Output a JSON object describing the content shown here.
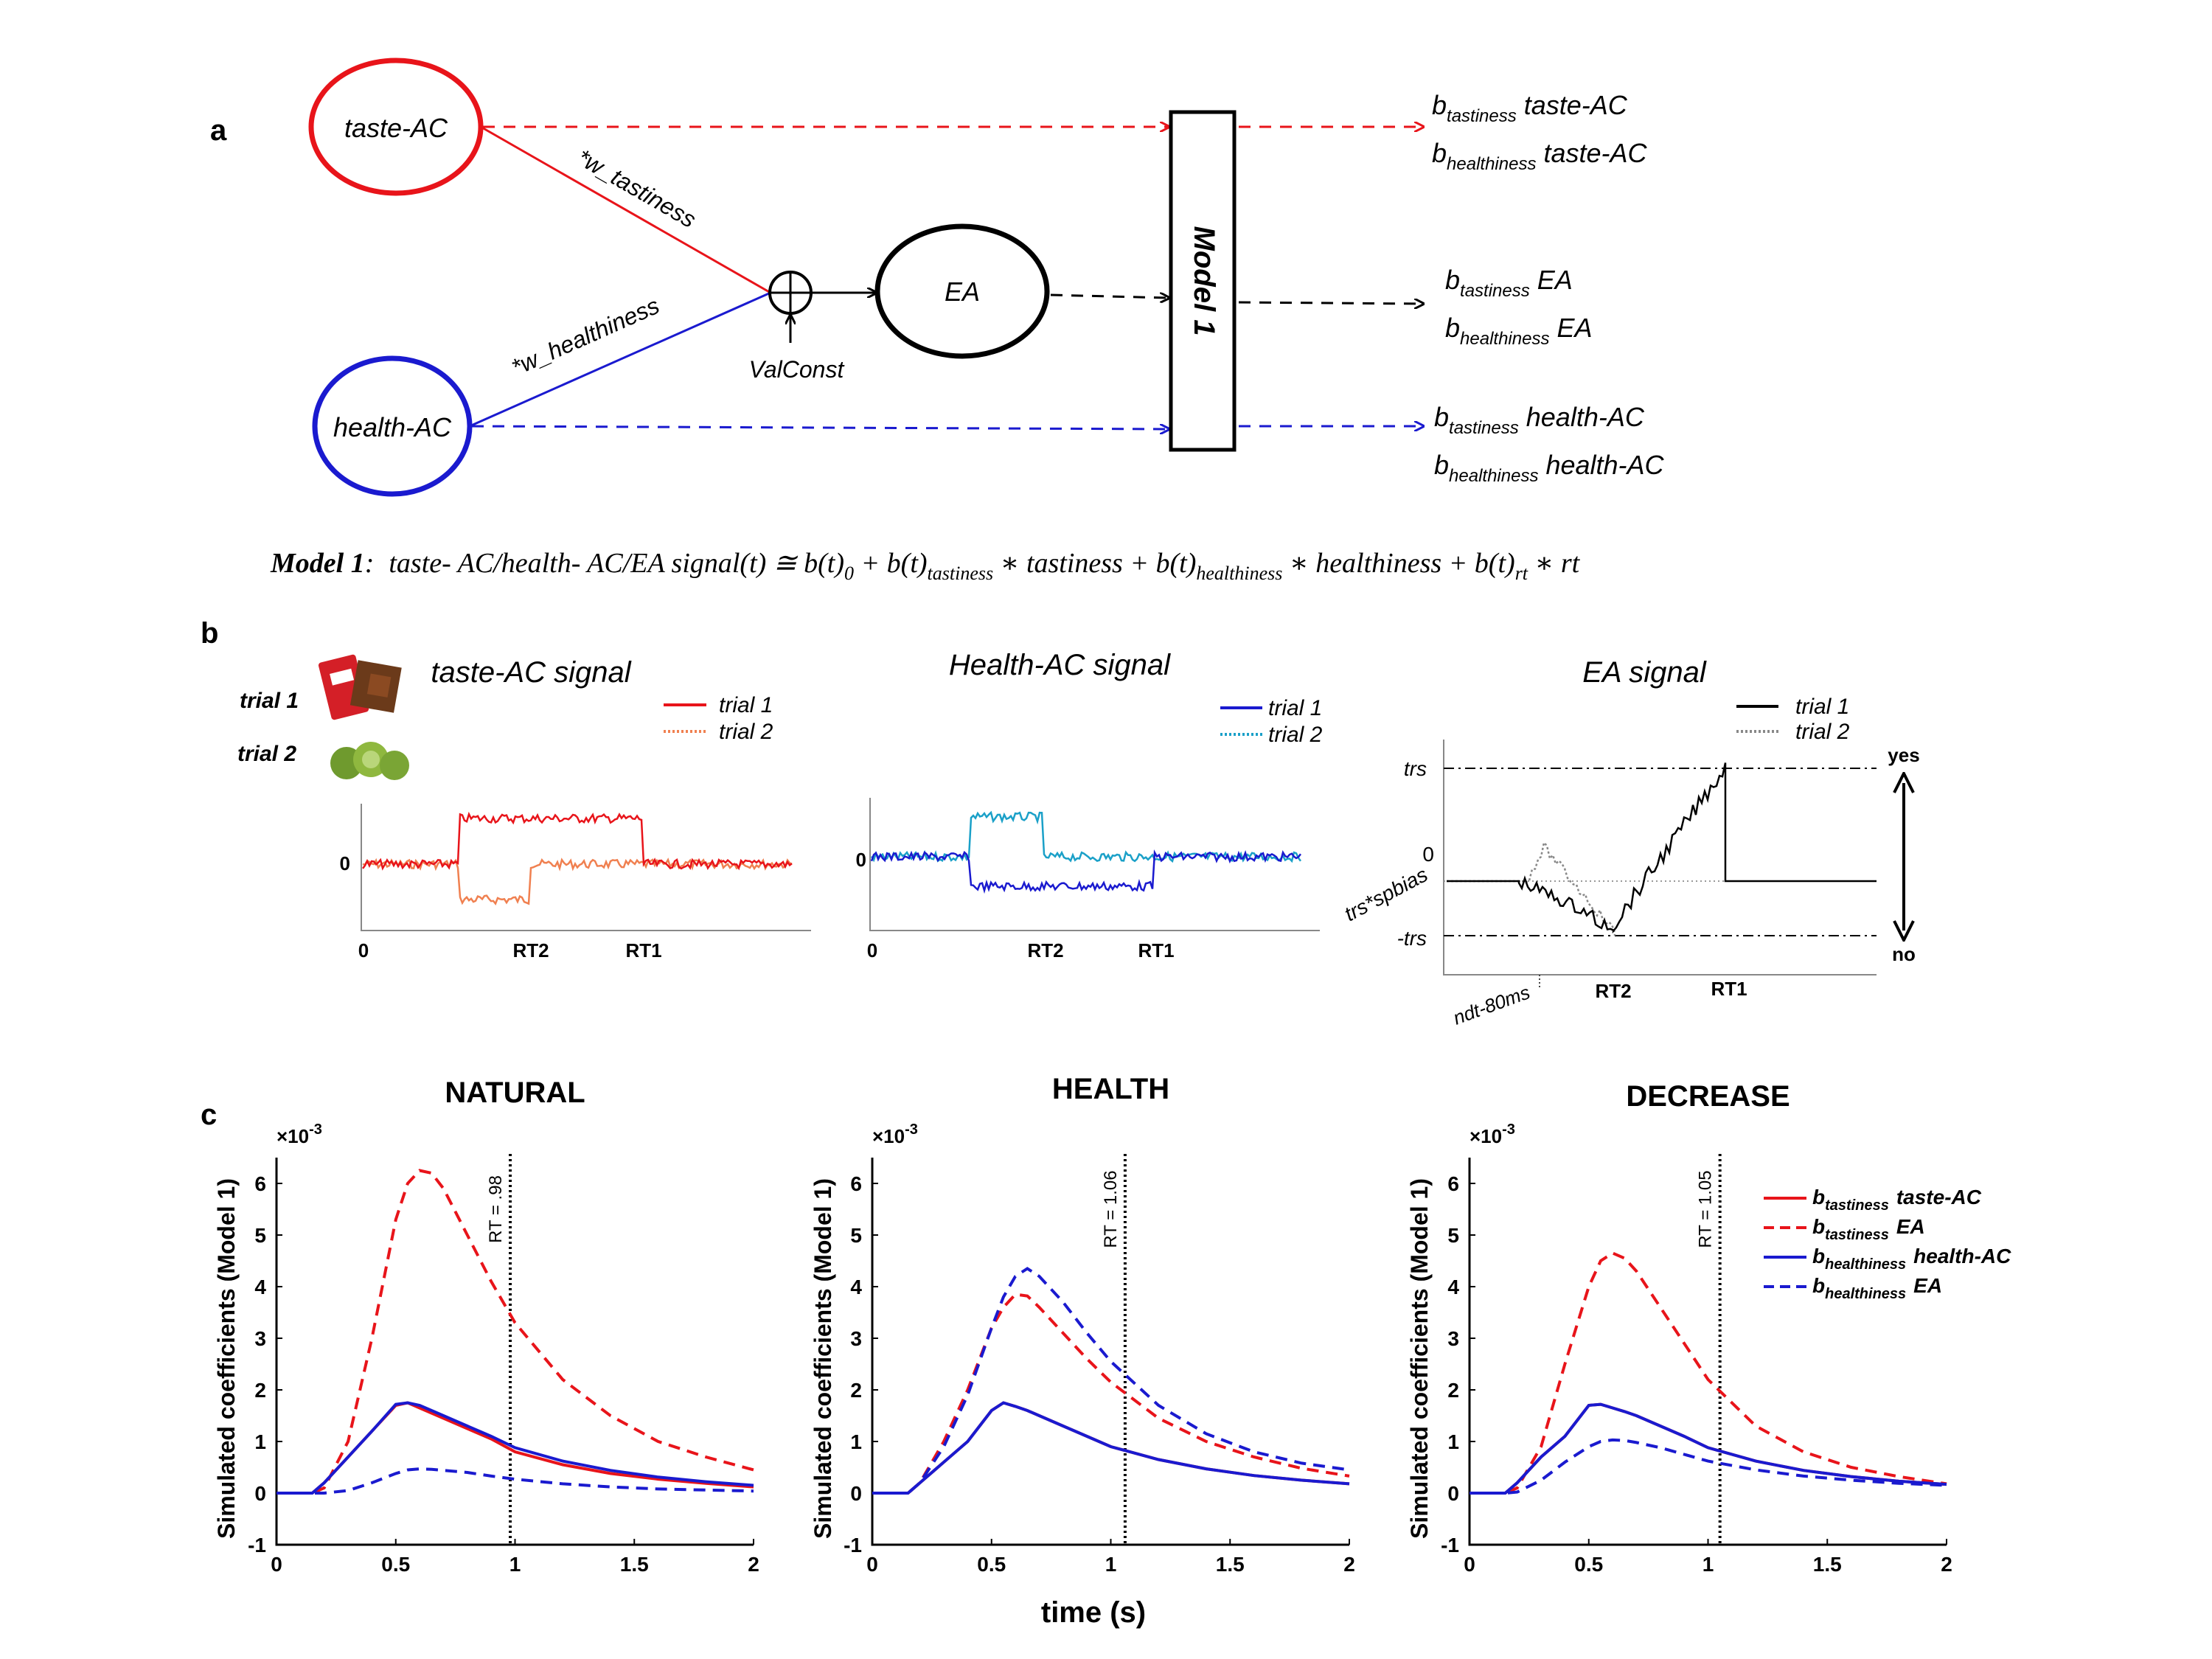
{
  "panel_a": {
    "label": "a",
    "nodes": {
      "taste": "taste-AC",
      "health": "health-AC",
      "ea": "EA"
    },
    "weights": {
      "taste": "*w_tastiness",
      "health": "*w_healthiness",
      "valconst": "ValConst"
    },
    "model_box": "Model 1",
    "outputs": [
      {
        "b": "b",
        "sub": "tastiness",
        "tail": " taste-AC"
      },
      {
        "b": "b",
        "sub": "healthiness",
        "tail": " taste-AC"
      },
      {
        "b": "b",
        "sub": "tastiness",
        "tail": " EA"
      },
      {
        "b": "b",
        "sub": "healthiness",
        "tail": " EA"
      },
      {
        "b": "b",
        "sub": "tastiness",
        "tail": " health-AC"
      },
      {
        "b": "b",
        "sub": "healthiness",
        "tail": " health-AC"
      }
    ],
    "equation": {
      "name": "Model 1",
      "colon": ":",
      "lhs": "taste- AC/health- AC/EA signal(t) ≅ b(t)",
      "sub0": "0",
      "p1": " + b(t)",
      "sub1": "tastiness",
      "p2": " ∗ tastiness + b(t)",
      "sub2": "healthiness",
      "p3": " ∗ healthiness + b(t)",
      "sub3": "rt",
      "p4": " ∗ rt"
    }
  },
  "panel_b": {
    "label": "b",
    "trial1": "trial 1",
    "trial2": "trial 2",
    "taste": {
      "title": "taste-AC signal",
      "legend": [
        "trial 1",
        "trial 2"
      ],
      "ytick": "0",
      "xticks": [
        "0",
        "RT2",
        "RT1"
      ]
    },
    "health": {
      "title": "Health-AC signal",
      "legend": [
        "trial 1",
        "trial 2"
      ],
      "ytick": "0",
      "xticks": [
        "0",
        "RT2",
        "RT1"
      ]
    },
    "ea": {
      "title": "EA signal",
      "legend": [
        "trial 1",
        "trial 2"
      ],
      "yticks": [
        "trs",
        "0",
        "trs*spbias",
        "-trs"
      ],
      "xticks": [
        "ndt-80ms",
        "RT2",
        "RT1"
      ],
      "yes": "yes",
      "no": "no"
    }
  },
  "panel_c": {
    "label": "c",
    "xlabel": "time (s)",
    "ylabel": "Simulated coefficients (Model 1)",
    "exponent_base": "×10",
    "exponent_pow": "-3",
    "legend": [
      {
        "b": "b",
        "sub": "tastiness",
        "tail": "taste-AC",
        "color": "#e8141a",
        "dash": false
      },
      {
        "b": "b",
        "sub": "tastiness",
        "tail": "EA",
        "color": "#e8141a",
        "dash": true
      },
      {
        "b": "b",
        "sub": "healthiness",
        "tail": "health-AC",
        "color": "#1a1acf",
        "dash": false
      },
      {
        "b": "b",
        "sub": "healthiness",
        "tail": "EA",
        "color": "#1a1acf",
        "dash": true
      }
    ]
  },
  "chart_data": [
    {
      "type": "line",
      "title": "NATURAL",
      "xlabel": "time (s)",
      "ylabel": "Simulated coefficients (Model 1)",
      "xlim": [
        0,
        2
      ],
      "ylim": [
        -1,
        6.5
      ],
      "y_scale_note": "×10-3",
      "xticks": [
        "0",
        "0.5",
        "1",
        "1.5",
        "2"
      ],
      "yticks": [
        "-1",
        "0",
        "1",
        "2",
        "3",
        "4",
        "5",
        "6"
      ],
      "vline": {
        "x": 0.98,
        "label": "RT = .98"
      },
      "x": [
        0,
        0.1,
        0.15,
        0.2,
        0.3,
        0.4,
        0.5,
        0.55,
        0.6,
        0.65,
        0.7,
        0.8,
        0.9,
        1.0,
        1.2,
        1.4,
        1.6,
        1.8,
        2.0
      ],
      "series": [
        {
          "name": "b tastiness taste-AC",
          "color": "#e8141a",
          "dash": false,
          "values": [
            0,
            0,
            0,
            0.2,
            0.7,
            1.2,
            1.7,
            1.75,
            1.65,
            1.55,
            1.45,
            1.25,
            1.05,
            0.8,
            0.55,
            0.38,
            0.27,
            0.19,
            0.12
          ]
        },
        {
          "name": "b tastiness EA",
          "color": "#e8141a",
          "dash": true,
          "values": [
            0,
            0,
            0,
            0.1,
            1.0,
            3.0,
            5.3,
            6.0,
            6.25,
            6.2,
            5.9,
            5.0,
            4.1,
            3.3,
            2.2,
            1.5,
            1.0,
            0.7,
            0.45
          ]
        },
        {
          "name": "b healthiness health-AC",
          "color": "#1a1acf",
          "dash": false,
          "values": [
            0,
            0,
            0,
            0.2,
            0.7,
            1.2,
            1.72,
            1.75,
            1.7,
            1.6,
            1.5,
            1.3,
            1.1,
            0.88,
            0.62,
            0.44,
            0.31,
            0.22,
            0.15
          ]
        },
        {
          "name": "b healthiness EA",
          "color": "#1a1acf",
          "dash": true,
          "values": [
            0,
            0,
            0,
            0,
            0.05,
            0.2,
            0.38,
            0.45,
            0.47,
            0.46,
            0.44,
            0.4,
            0.33,
            0.27,
            0.18,
            0.12,
            0.08,
            0.06,
            0.04
          ]
        }
      ]
    },
    {
      "type": "line",
      "title": "HEALTH",
      "xlabel": "time (s)",
      "ylabel": "Simulated coefficients (Model 1)",
      "xlim": [
        0,
        2
      ],
      "ylim": [
        -1,
        6.5
      ],
      "y_scale_note": "×10-3",
      "xticks": [
        "0",
        "0.5",
        "1",
        "1.5",
        "2"
      ],
      "yticks": [
        "-1",
        "0",
        "1",
        "2",
        "3",
        "4",
        "5",
        "6"
      ],
      "vline": {
        "x": 1.06,
        "label": "RT = 1.06"
      },
      "x": [
        0,
        0.1,
        0.15,
        0.2,
        0.3,
        0.4,
        0.5,
        0.55,
        0.6,
        0.65,
        0.7,
        0.8,
        0.9,
        1.0,
        1.2,
        1.4,
        1.6,
        1.8,
        2.0
      ],
      "series": [
        {
          "name": "b tastiness taste-AC",
          "color": "#e8141a",
          "dash": false,
          "values": [
            0,
            0,
            0,
            0.2,
            0.6,
            1.0,
            1.6,
            1.75,
            1.68,
            1.6,
            1.5,
            1.3,
            1.1,
            0.9,
            0.65,
            0.47,
            0.34,
            0.25,
            0.18
          ]
        },
        {
          "name": "b tastiness EA",
          "color": "#e8141a",
          "dash": true,
          "values": [
            0,
            0,
            0,
            0.2,
            1.0,
            2.0,
            3.2,
            3.6,
            3.85,
            3.82,
            3.6,
            3.1,
            2.6,
            2.15,
            1.45,
            1.0,
            0.7,
            0.48,
            0.33
          ]
        },
        {
          "name": "b healthiness health-AC",
          "color": "#1a1acf",
          "dash": false,
          "values": [
            0,
            0,
            0,
            0.2,
            0.6,
            1.0,
            1.6,
            1.75,
            1.68,
            1.6,
            1.5,
            1.3,
            1.1,
            0.9,
            0.65,
            0.47,
            0.34,
            0.25,
            0.18
          ]
        },
        {
          "name": "b healthiness EA",
          "color": "#1a1acf",
          "dash": true,
          "values": [
            0,
            0,
            0,
            0.2,
            0.9,
            1.9,
            3.2,
            3.8,
            4.2,
            4.35,
            4.2,
            3.7,
            3.1,
            2.55,
            1.7,
            1.15,
            0.8,
            0.58,
            0.45
          ]
        }
      ]
    },
    {
      "type": "line",
      "title": "DECREASE",
      "xlabel": "time (s)",
      "ylabel": "Simulated coefficients (Model 1)",
      "xlim": [
        0,
        2
      ],
      "ylim": [
        -1,
        6.5
      ],
      "y_scale_note": "×10-3",
      "xticks": [
        "0",
        "0.5",
        "1",
        "1.5",
        "2"
      ],
      "yticks": [
        "-1",
        "0",
        "1",
        "2",
        "3",
        "4",
        "5",
        "6"
      ],
      "vline": {
        "x": 1.05,
        "label": "RT = 1.05"
      },
      "x": [
        0,
        0.1,
        0.15,
        0.2,
        0.3,
        0.4,
        0.5,
        0.55,
        0.6,
        0.65,
        0.7,
        0.8,
        0.9,
        1.0,
        1.2,
        1.4,
        1.6,
        1.8,
        2.0
      ],
      "series": [
        {
          "name": "b tastiness taste-AC",
          "color": "#e8141a",
          "dash": false,
          "values": [
            0,
            0,
            0,
            0.2,
            0.7,
            1.1,
            1.7,
            1.72,
            1.65,
            1.58,
            1.5,
            1.3,
            1.1,
            0.88,
            0.62,
            0.44,
            0.32,
            0.23,
            0.17
          ]
        },
        {
          "name": "b tastiness EA",
          "color": "#e8141a",
          "dash": true,
          "values": [
            0,
            0,
            0,
            0.1,
            0.9,
            2.5,
            4.0,
            4.5,
            4.65,
            4.55,
            4.3,
            3.6,
            2.9,
            2.2,
            1.3,
            0.8,
            0.5,
            0.32,
            0.18
          ]
        },
        {
          "name": "b healthiness health-AC",
          "color": "#1a1acf",
          "dash": false,
          "values": [
            0,
            0,
            0,
            0.2,
            0.7,
            1.1,
            1.7,
            1.72,
            1.65,
            1.58,
            1.5,
            1.3,
            1.1,
            0.88,
            0.62,
            0.44,
            0.32,
            0.23,
            0.17
          ]
        },
        {
          "name": "b healthiness EA",
          "color": "#1a1acf",
          "dash": true,
          "values": [
            0,
            0,
            0,
            0.02,
            0.25,
            0.6,
            0.9,
            1.0,
            1.03,
            1.02,
            0.98,
            0.88,
            0.75,
            0.62,
            0.45,
            0.33,
            0.25,
            0.19,
            0.15
          ]
        }
      ]
    }
  ]
}
